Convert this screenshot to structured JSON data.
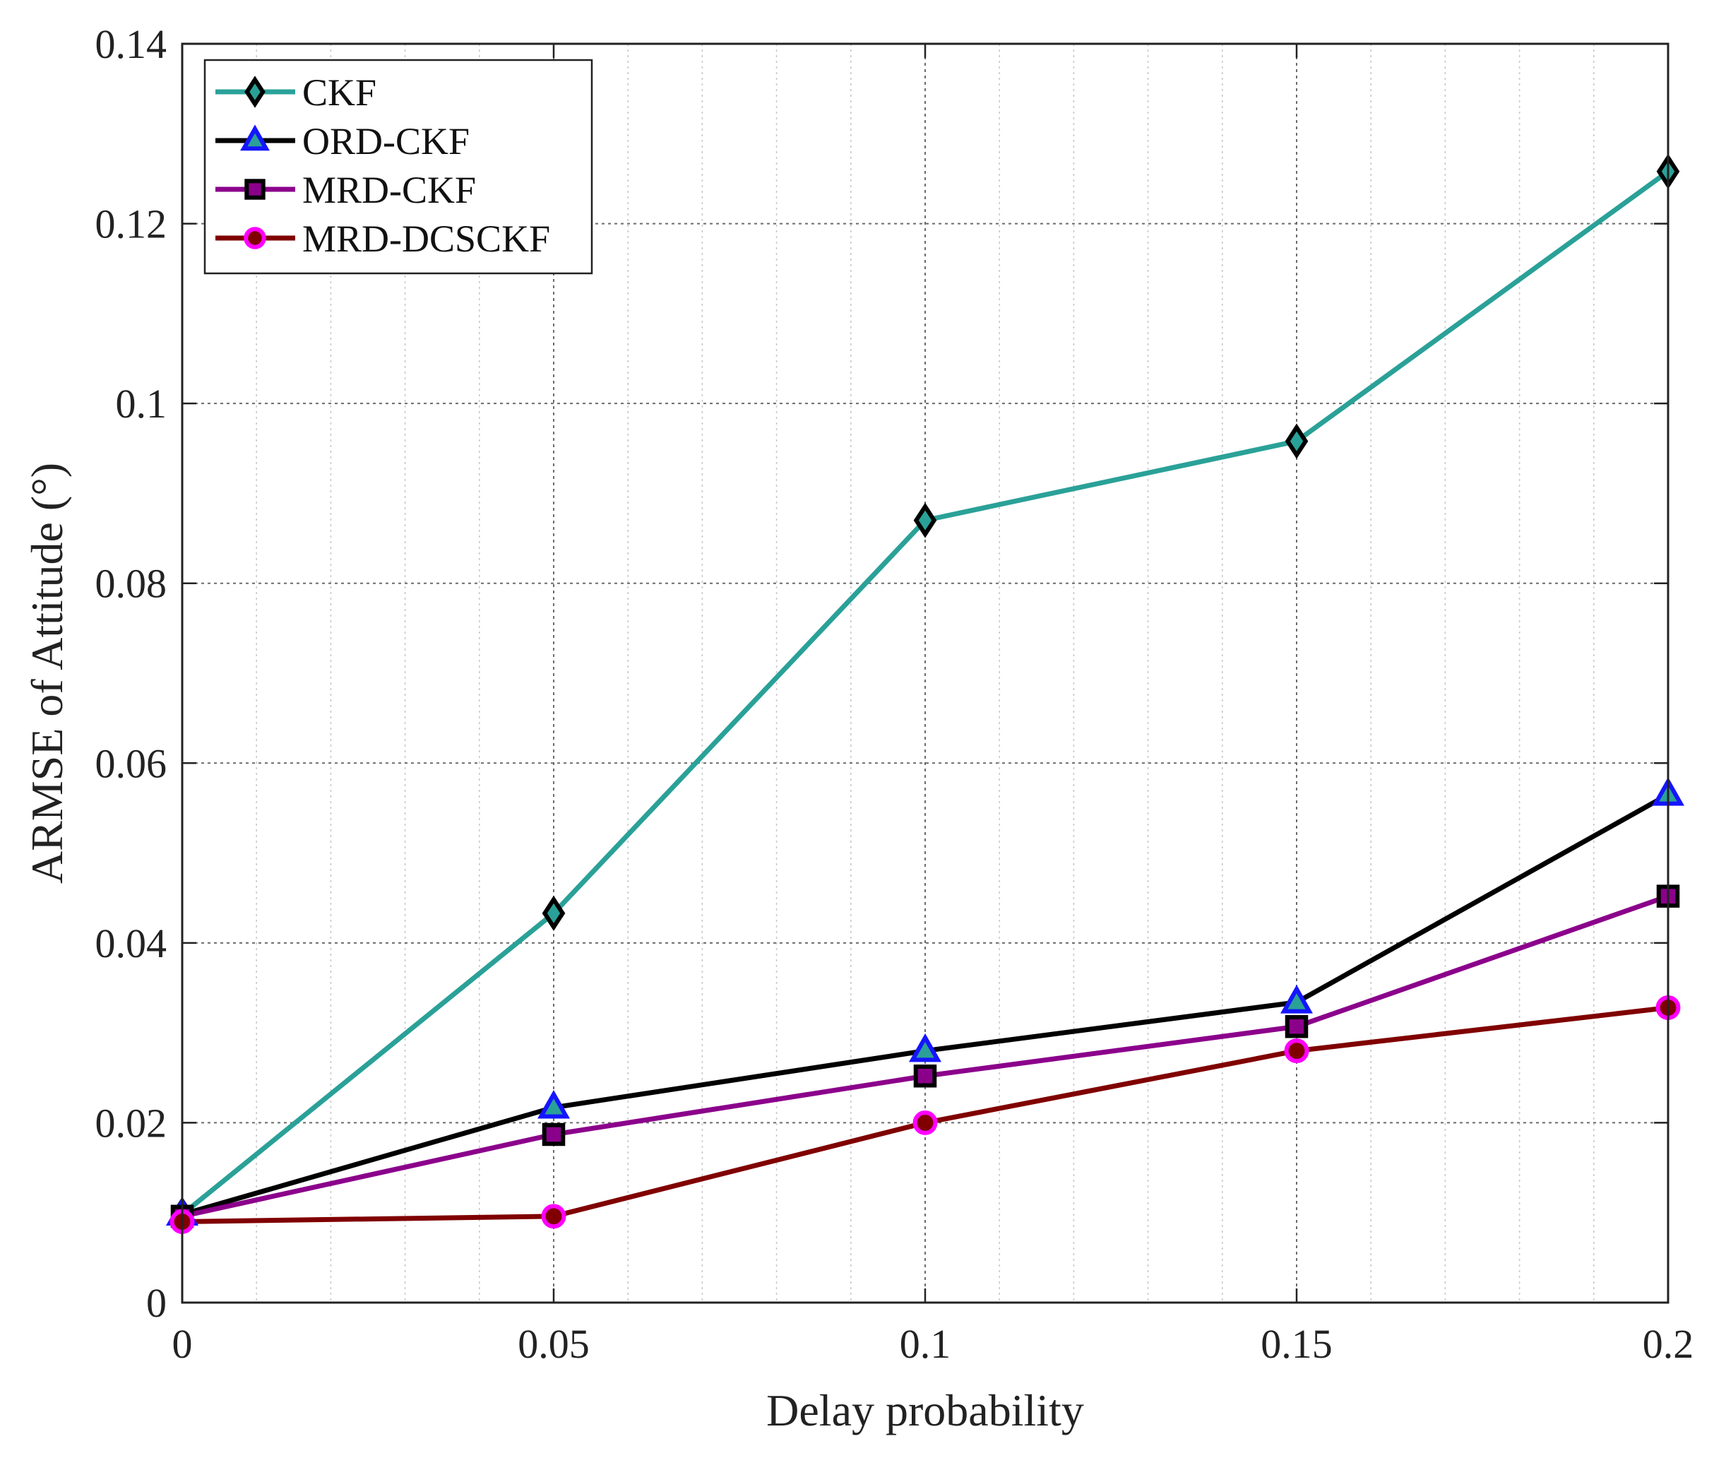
{
  "chart_data": {
    "type": "line",
    "title": "",
    "xlabel": "Delay probability",
    "ylabel": "ARMSE of Attitude (°)",
    "x": [
      0,
      0.05,
      0.1,
      0.15,
      0.2
    ],
    "xlim": [
      0,
      0.2
    ],
    "ylim": [
      0,
      0.14
    ],
    "xticks": [
      0,
      0.05,
      0.1,
      0.15,
      0.2
    ],
    "xtick_labels": [
      "0",
      "0.05",
      "0.1",
      "0.15",
      "0.2"
    ],
    "yticks": [
      0,
      0.02,
      0.04,
      0.06,
      0.08,
      0.1,
      0.12,
      0.14
    ],
    "ytick_labels": [
      "0",
      "0.02",
      "0.04",
      "0.06",
      "0.08",
      "0.1",
      "0.12",
      "0.14"
    ],
    "grid": true,
    "minor_grid_x": true,
    "legend_position": "top-left",
    "series": [
      {
        "name": "CKF",
        "values": [
          0.0098,
          0.0433,
          0.087,
          0.0958,
          0.1258
        ],
        "color": "#2aa198",
        "marker": "diamond",
        "marker_face": "#2aa198",
        "marker_edge": "#000000"
      },
      {
        "name": "ORD-CKF",
        "values": [
          0.0098,
          0.0217,
          0.028,
          0.0334,
          0.0565
        ],
        "color": "#000000",
        "marker": "triangle",
        "marker_face": "#2aa198",
        "marker_edge": "#1515ff"
      },
      {
        "name": "MRD-CKF",
        "values": [
          0.0096,
          0.0187,
          0.0252,
          0.0307,
          0.0452
        ],
        "color": "#8b008b",
        "marker": "square",
        "marker_face": "#8b008b",
        "marker_edge": "#000000"
      },
      {
        "name": "MRD-DCSCKF",
        "values": [
          0.009,
          0.0096,
          0.02,
          0.028,
          0.0328
        ],
        "color": "#800000",
        "marker": "circle",
        "marker_face": "#800000",
        "marker_edge": "#ff00ff"
      }
    ]
  }
}
